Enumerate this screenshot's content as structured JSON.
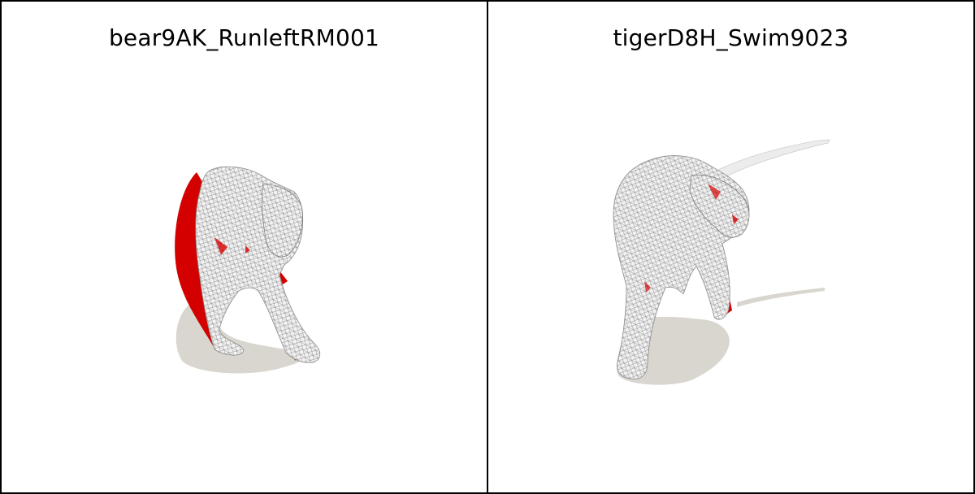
{
  "panels": [
    {
      "title": "bear9AK_RunleftRM001"
    },
    {
      "title": "tigerD8H_Swim9023"
    }
  ],
  "colors": {
    "mesh_fill": "#f2f2f2",
    "wire": "#9a9a9a",
    "highlight": "#d40000",
    "shadow": "#d9d6cf",
    "border": "#000000"
  }
}
